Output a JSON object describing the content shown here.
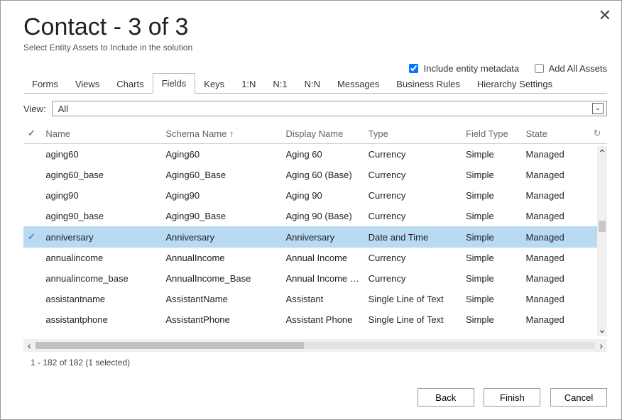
{
  "title": "Contact - 3 of 3",
  "subtitle": "Select Entity Assets to Include in the solution",
  "checkboxes": {
    "include_metadata": {
      "label": "Include entity metadata",
      "checked": true
    },
    "add_all_assets": {
      "label": "Add All Assets",
      "checked": false
    }
  },
  "tabs": [
    "Forms",
    "Views",
    "Charts",
    "Fields",
    "Keys",
    "1:N",
    "N:1",
    "N:N",
    "Messages",
    "Business Rules",
    "Hierarchy Settings"
  ],
  "active_tab": "Fields",
  "view_label": "View:",
  "view_value": "All",
  "columns": [
    "Name",
    "Schema Name",
    "Display Name",
    "Type",
    "Field Type",
    "State"
  ],
  "sort_column": "Schema Name",
  "rows": [
    {
      "name": "aging60",
      "schema": "Aging60",
      "display": "Aging 60",
      "type": "Currency",
      "ftype": "Simple",
      "state": "Managed",
      "selected": false
    },
    {
      "name": "aging60_base",
      "schema": "Aging60_Base",
      "display": "Aging 60 (Base)",
      "type": "Currency",
      "ftype": "Simple",
      "state": "Managed",
      "selected": false
    },
    {
      "name": "aging90",
      "schema": "Aging90",
      "display": "Aging 90",
      "type": "Currency",
      "ftype": "Simple",
      "state": "Managed",
      "selected": false
    },
    {
      "name": "aging90_base",
      "schema": "Aging90_Base",
      "display": "Aging 90 (Base)",
      "type": "Currency",
      "ftype": "Simple",
      "state": "Managed",
      "selected": false
    },
    {
      "name": "anniversary",
      "schema": "Anniversary",
      "display": "Anniversary",
      "type": "Date and Time",
      "ftype": "Simple",
      "state": "Managed",
      "selected": true
    },
    {
      "name": "annualincome",
      "schema": "AnnualIncome",
      "display": "Annual Income",
      "type": "Currency",
      "ftype": "Simple",
      "state": "Managed",
      "selected": false
    },
    {
      "name": "annualincome_base",
      "schema": "AnnualIncome_Base",
      "display": "Annual Income (...",
      "type": "Currency",
      "ftype": "Simple",
      "state": "Managed",
      "selected": false
    },
    {
      "name": "assistantname",
      "schema": "AssistantName",
      "display": "Assistant",
      "type": "Single Line of Text",
      "ftype": "Simple",
      "state": "Managed",
      "selected": false
    },
    {
      "name": "assistantphone",
      "schema": "AssistantPhone",
      "display": "Assistant Phone",
      "type": "Single Line of Text",
      "ftype": "Simple",
      "state": "Managed",
      "selected": false
    }
  ],
  "status": "1 - 182 of 182 (1 selected)",
  "buttons": {
    "back": "Back",
    "finish": "Finish",
    "cancel": "Cancel"
  }
}
